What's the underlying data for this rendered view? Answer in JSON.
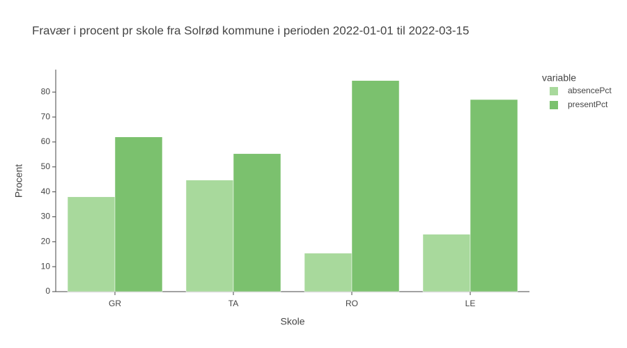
{
  "chart_data": {
    "type": "bar",
    "title": "Fravær i procent pr skole fra Solrød kommune i perioden 2022-01-01 til 2022-03-15",
    "x_label": "Skole",
    "y_label": "Procent",
    "legend_title": "variable",
    "categories": [
      "GR",
      "TA",
      "RO",
      "LE"
    ],
    "series": [
      {
        "name": "absencePct",
        "color": "#a8d99c",
        "values": [
          38,
          44.7,
          15.4,
          23
        ]
      },
      {
        "name": "presentPct",
        "color": "#7bc16e",
        "values": [
          62,
          55.3,
          84.6,
          77
        ]
      }
    ],
    "ylim": [
      0,
      89
    ],
    "yticks": [
      0,
      10,
      20,
      30,
      40,
      50,
      60,
      70,
      80
    ],
    "grid": false
  }
}
